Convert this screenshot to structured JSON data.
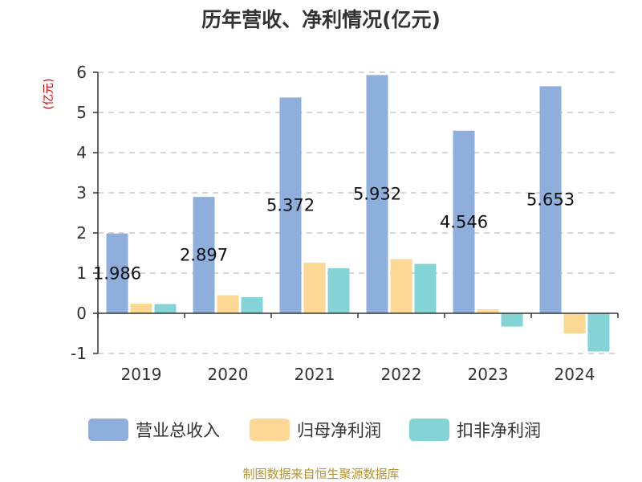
{
  "chart_data": {
    "type": "bar",
    "title": "历年营收、净利情况(亿元)",
    "ylabel": "(亿元)",
    "xlabel": "",
    "categories": [
      "2019",
      "2020",
      "2021",
      "2022",
      "2023",
      "2024"
    ],
    "ylim": [
      -1,
      6
    ],
    "yticks": [
      6,
      5,
      4,
      3,
      2,
      1,
      0,
      -1
    ],
    "grid": true,
    "legend_position": "bottom",
    "series": [
      {
        "name": "营业总收入",
        "color": "#8eaedb",
        "values": [
          1.986,
          2.897,
          5.372,
          5.932,
          4.546,
          5.653
        ],
        "data_labels": [
          "1.986",
          "2.897",
          "5.372",
          "5.932",
          "4.546",
          "5.653"
        ]
      },
      {
        "name": "归母净利润",
        "color": "#fdd794",
        "values": [
          0.24,
          0.45,
          1.26,
          1.35,
          0.1,
          -0.5
        ]
      },
      {
        "name": "扣非净利润",
        "color": "#84d3d6",
        "values": [
          0.23,
          0.4,
          1.12,
          1.23,
          -0.33,
          -0.95
        ]
      }
    ]
  },
  "footer": {
    "source": "制图数据来自恒生聚源数据库"
  }
}
